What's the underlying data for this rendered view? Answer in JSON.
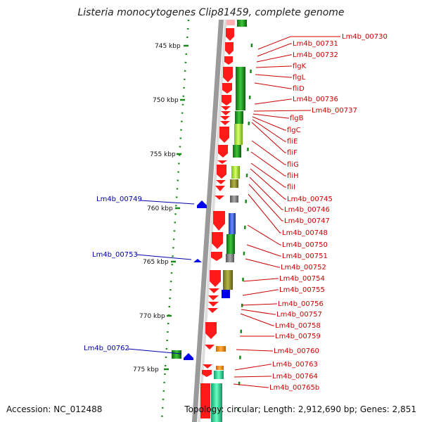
{
  "title": "Listeria monocytogenes Clip81459, complete genome",
  "accession": "Accession: NC_012488",
  "topology": "Topology: circular; Length: 2,912,690 bp; Genes: 2,851",
  "scale_ticks": [
    "745 kbp",
    "750 kbp",
    "755 kbp",
    "760 kbp",
    "765 kbp",
    "770 kbp",
    "775 kbp"
  ],
  "right_labels": [
    "Lm4b_00730",
    "Lm4b_00731",
    "Lm4b_00732",
    "flgK",
    "flgL",
    "fliD",
    "Lm4b_00736",
    "Lm4b_00737",
    "flgB",
    "flgC",
    "fliE",
    "fliF",
    "fliG",
    "fliH",
    "fliI",
    "Lm4b_00745",
    "Lm4b_00746",
    "Lm4b_00747",
    "Lm4b_00748",
    "Lm4b_00750",
    "Lm4b_00751",
    "Lm4b_00752",
    "Lm4b_00754",
    "Lm4b_00755",
    "Lm4b_00756",
    "Lm4b_00757",
    "Lm4b_00758",
    "Lm4b_00759",
    "Lm4b_00760",
    "Lm4b_00763",
    "Lm4b_00764",
    "Lm4b_00765b"
  ],
  "left_labels": [
    "Lm4b_00749",
    "Lm4b_00753",
    "Lm4b_00762"
  ],
  "colors": {
    "forward_gene": "#ff1a1a",
    "reverse_gene": "#0000ee",
    "label_right": "#cc0000",
    "label_left": "#0000aa",
    "scale": "#1a8a1a",
    "backbone": "#999999"
  }
}
